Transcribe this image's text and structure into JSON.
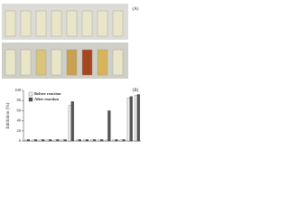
{
  "panel_a": {
    "label": "(A)"
  },
  "chart_data": {
    "type": "bar",
    "panel_label": "(B)",
    "y_label": "Inhibition (%)",
    "categories": [
      null,
      null,
      null,
      null,
      null,
      null,
      null,
      null,
      null,
      null,
      null,
      null,
      null,
      null,
      null,
      null
    ],
    "series": [
      {
        "name": "Before reaction",
        "color": "#f2f2f2",
        "values": [
          2,
          2,
          2,
          2,
          2,
          2,
          70,
          2,
          2,
          2,
          2,
          2,
          2,
          2,
          85,
          90
        ]
      },
      {
        "name": "After reaction",
        "color": "#555555",
        "values": [
          3,
          3,
          3,
          3,
          3,
          3,
          78,
          3,
          3,
          3,
          3,
          60,
          3,
          3,
          88,
          92
        ]
      }
    ],
    "ylim": [
      0,
      100
    ],
    "yticks": [
      0,
      20,
      40,
      60,
      80,
      100
    ],
    "legend": "upper-left"
  }
}
